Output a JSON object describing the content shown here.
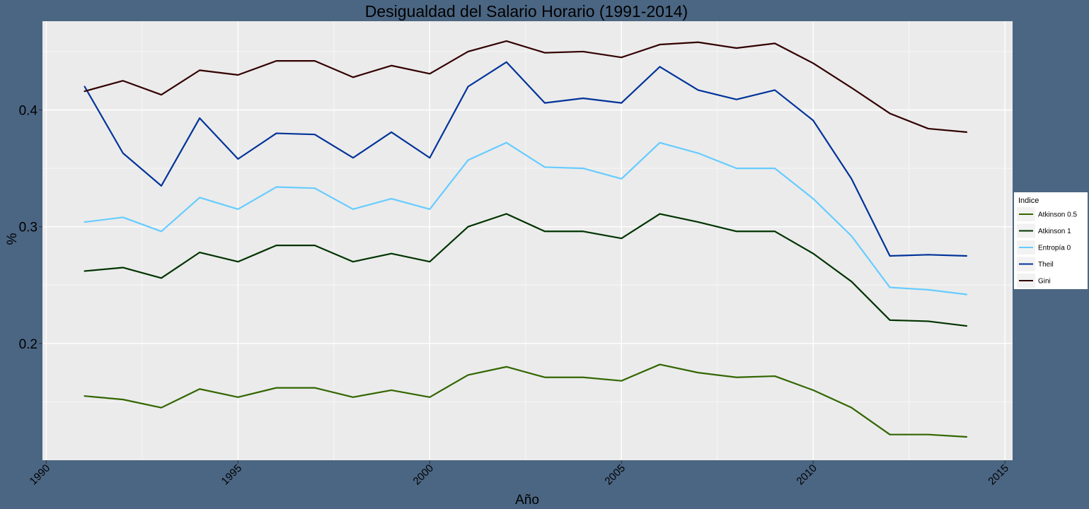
{
  "chart_data": {
    "type": "line",
    "title": "Desigualdad del Salario Horario (1991-2014)",
    "xlabel": "Año",
    "ylabel": "%",
    "xlim": [
      1989.9,
      2015.2
    ],
    "ylim": [
      0.1,
      0.476
    ],
    "x_ticks": [
      1990,
      1995,
      2000,
      2005,
      2010,
      2015
    ],
    "y_ticks": [
      0.2,
      0.3,
      0.4
    ],
    "y_tick_labels": [
      "0.2",
      "0.3",
      "0.4"
    ],
    "grid": true,
    "legend": {
      "title": "Indice",
      "position": "right"
    },
    "x": [
      1991,
      1992,
      1993,
      1994,
      1995,
      1996,
      1997,
      1998,
      1999,
      2000,
      2001,
      2002,
      2003,
      2004,
      2005,
      2006,
      2007,
      2008,
      2009,
      2010,
      2011,
      2012,
      2013,
      2014
    ],
    "series": [
      {
        "name": "Atkinson 0.5",
        "color": "#336600",
        "values": [
          0.155,
          0.152,
          0.145,
          0.161,
          0.154,
          0.162,
          0.162,
          0.154,
          0.16,
          0.154,
          0.173,
          0.18,
          0.171,
          0.171,
          0.168,
          0.182,
          0.175,
          0.171,
          0.172,
          0.16,
          0.145,
          0.122,
          0.122,
          0.12
        ]
      },
      {
        "name": "Atkinson 1",
        "color": "#003300",
        "values": [
          0.262,
          0.265,
          0.256,
          0.278,
          0.27,
          0.284,
          0.284,
          0.27,
          0.277,
          0.27,
          0.3,
          0.311,
          0.296,
          0.296,
          0.29,
          0.311,
          0.304,
          0.296,
          0.296,
          0.277,
          0.253,
          0.22,
          0.219,
          0.215
        ]
      },
      {
        "name": "Entropía 0",
        "color": "#66ccff",
        "values": [
          0.304,
          0.308,
          0.296,
          0.325,
          0.315,
          0.334,
          0.333,
          0.315,
          0.324,
          0.315,
          0.357,
          0.372,
          0.351,
          0.35,
          0.341,
          0.372,
          0.363,
          0.35,
          0.35,
          0.324,
          0.292,
          0.248,
          0.246,
          0.242
        ]
      },
      {
        "name": "Theil",
        "color": "#003399",
        "values": [
          0.42,
          0.363,
          0.335,
          0.393,
          0.358,
          0.38,
          0.379,
          0.359,
          0.381,
          0.359,
          0.42,
          0.441,
          0.406,
          0.41,
          0.406,
          0.437,
          0.417,
          0.409,
          0.417,
          0.391,
          0.341,
          0.275,
          0.276,
          0.275
        ]
      },
      {
        "name": "Gini",
        "color": "#330000",
        "values": [
          0.416,
          0.425,
          0.413,
          0.434,
          0.43,
          0.442,
          0.442,
          0.428,
          0.438,
          0.431,
          0.45,
          0.459,
          0.449,
          0.45,
          0.445,
          0.456,
          0.458,
          0.453,
          0.457,
          0.44,
          0.419,
          0.397,
          0.384,
          0.381
        ]
      }
    ]
  }
}
